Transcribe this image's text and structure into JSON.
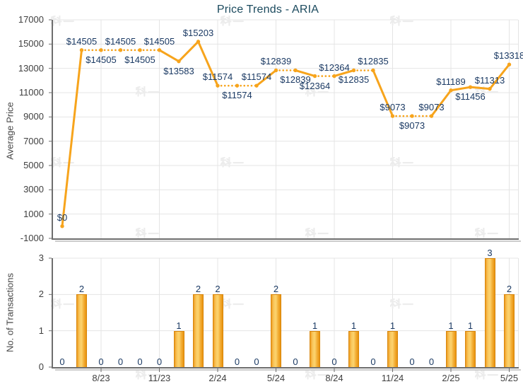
{
  "title": "Price Trends - ARIA",
  "watermark": {
    "text": "科一"
  },
  "colors": {
    "title": "#1B4A5E",
    "data_label": "#1B3A64",
    "line": "#F7A41C",
    "marker": "#F7A41C",
    "bar_border": "#D8860B",
    "bar_gradient": [
      "#EF9D22",
      "#F9C75D",
      "#FCD36E",
      "#F2AC33",
      "#E8930F"
    ],
    "grid": "#E4E4E4",
    "axis": "#6E6E6E",
    "axis_shadow": "#CCCCCC",
    "tick_text": "#404040",
    "axis_title": "#474747",
    "watermark": "#ECECEC"
  },
  "x_axis": {
    "n_points": 24,
    "tick_indices": [
      2,
      5,
      8,
      11,
      14,
      17,
      20,
      23
    ],
    "tick_labels": [
      "8/23",
      "11/23",
      "2/24",
      "5/24",
      "8/24",
      "11/24",
      "2/25",
      "5/25"
    ]
  },
  "chart_data": [
    {
      "type": "line",
      "title": "Price Trends - ARIA",
      "ylabel": "Average Price",
      "ylim": [
        -1000,
        17000
      ],
      "yticks": [
        17000,
        15000,
        13000,
        11000,
        9000,
        7000,
        5000,
        3000,
        1000,
        -1000
      ],
      "grid": true,
      "line_style_rule": "segment drawn dotted when the month it leads into has zero transactions",
      "points": [
        {
          "price": 0,
          "label": "$0",
          "label_side": "above"
        },
        {
          "price": 14505,
          "label": "$14505",
          "label_side": "above"
        },
        {
          "price": 14505,
          "label": "$14505",
          "label_side": "below"
        },
        {
          "price": 14505,
          "label": "$14505",
          "label_side": "above"
        },
        {
          "price": 14505,
          "label": "$14505",
          "label_side": "below"
        },
        {
          "price": 14505,
          "label": "$14505",
          "label_side": "above"
        },
        {
          "price": 13583,
          "label": "$13583",
          "label_side": "below"
        },
        {
          "price": 15203,
          "label": "$15203",
          "label_side": "above"
        },
        {
          "price": 11574,
          "label": "$11574",
          "label_side": "above"
        },
        {
          "price": 11574,
          "label": "$11574",
          "label_side": "below"
        },
        {
          "price": 11574,
          "label": "$11574",
          "label_side": "above"
        },
        {
          "price": 12839,
          "label": "$12839",
          "label_side": "above"
        },
        {
          "price": 12839,
          "label": "$12839",
          "label_side": "below"
        },
        {
          "price": 12364,
          "label": "$12364",
          "label_side": "below"
        },
        {
          "price": 12364,
          "label": "$12364",
          "label_side": "above"
        },
        {
          "price": 12835,
          "label": "$12835",
          "label_side": "below"
        },
        {
          "price": 12835,
          "label": "$12835",
          "label_side": "above"
        },
        {
          "price": 9073,
          "label": "$9073",
          "label_side": "above"
        },
        {
          "price": 9073,
          "label": "$9073",
          "label_side": "below"
        },
        {
          "price": 9073,
          "label": "$9073",
          "label_side": "above"
        },
        {
          "price": 11189,
          "label": "$11189",
          "label_side": "above"
        },
        {
          "price": 11456,
          "label": "$11456",
          "label_side": "below"
        },
        {
          "price": 11313,
          "label": "$11313",
          "label_side": "above"
        },
        {
          "price": 13318,
          "label": "$13318",
          "label_side": "above"
        }
      ]
    },
    {
      "type": "bar",
      "ylabel": "No. of Transactions",
      "ylim": [
        0,
        3
      ],
      "yticks": [
        3,
        2,
        1,
        0
      ],
      "grid": true,
      "values": [
        0,
        2,
        0,
        0,
        0,
        0,
        1,
        2,
        2,
        0,
        0,
        2,
        0,
        1,
        0,
        1,
        0,
        1,
        0,
        0,
        1,
        1,
        3,
        2
      ]
    }
  ]
}
